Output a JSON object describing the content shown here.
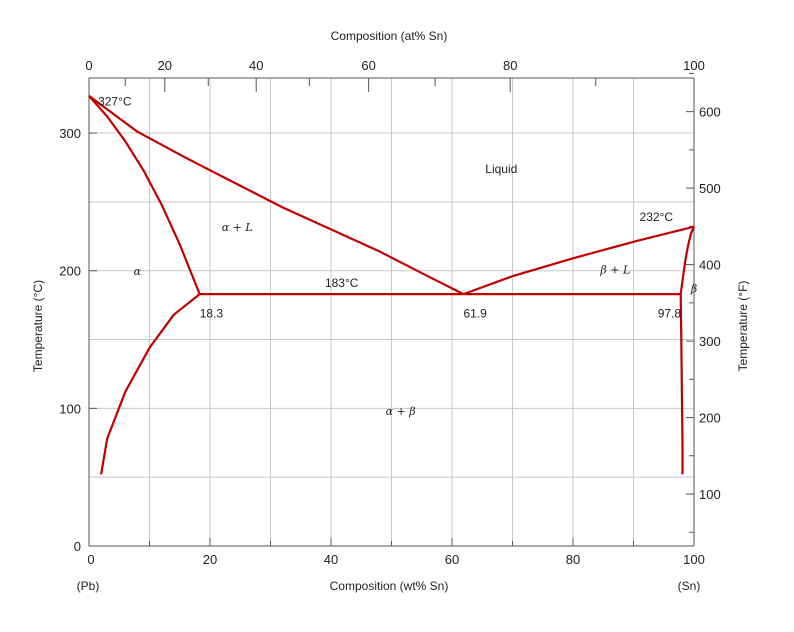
{
  "chart_data": {
    "type": "line",
    "title": "",
    "xlabel": "Composition (wt% Sn)",
    "xlabel_top": "Composition (at% Sn)",
    "ylabel": "Temperature (°C)",
    "ylabel_right": "Temperature (°F)",
    "xlim": [
      0,
      100
    ],
    "ylim": [
      0,
      340
    ],
    "x_ticks": [
      0,
      20,
      40,
      60,
      80,
      100
    ],
    "y_ticks": [
      0,
      100,
      200,
      300
    ],
    "y_ticks_right": [
      100,
      200,
      300,
      400,
      500,
      600
    ],
    "top_ticks": [
      0,
      20,
      40,
      60,
      80,
      100
    ],
    "end_labels": {
      "left": "(Pb)",
      "right": "(Sn)"
    },
    "grid": true,
    "line_color": "#c00000",
    "series": [
      {
        "x": [
          0,
          3,
          6,
          9,
          12,
          15,
          18.3
        ],
        "y": [
          327,
          312,
          294,
          273,
          248,
          219,
          183
        ]
      },
      {
        "x": [
          0,
          8,
          16,
          24,
          32,
          40,
          48,
          56,
          61.9
        ],
        "y": [
          327,
          301,
          282,
          264,
          246,
          230,
          214,
          196,
          183
        ]
      },
      {
        "x": [
          61.9,
          70,
          80,
          90,
          100
        ],
        "y": [
          183,
          196,
          209,
          221,
          232
        ]
      },
      {
        "x": [
          18.3,
          97.8
        ],
        "y": [
          183,
          183
        ]
      },
      {
        "x": [
          18.3,
          14,
          10,
          6,
          3,
          2
        ],
        "y": [
          183,
          168,
          144,
          112,
          78,
          52
        ]
      },
      {
        "x": [
          97.8,
          98.2,
          98.6,
          99,
          99.5,
          100
        ],
        "y": [
          183,
          196,
          208,
          218,
          227,
          232
        ]
      },
      {
        "x": [
          97.8,
          97.9,
          98.0,
          98.1,
          98.1
        ],
        "y": [
          183,
          150,
          110,
          75,
          52
        ]
      }
    ],
    "annotations": [
      {
        "text": "327°C",
        "x": 1.5,
        "y": 320
      },
      {
        "text": "232°C",
        "x": 91,
        "y": 236
      },
      {
        "text": "183°C",
        "x": 39,
        "y": 188
      },
      {
        "text": "18.3",
        "x": 18.3,
        "y": 166
      },
      {
        "text": "61.9",
        "x": 61.9,
        "y": 166
      },
      {
        "text": "97.8",
        "x": 94,
        "y": 166
      },
      {
        "text": "Liquid",
        "x": 65.5,
        "y": 271
      }
    ],
    "regions": [
      {
        "text": "α",
        "x": 8,
        "y": 197
      },
      {
        "text": "α + L",
        "x": 24.5,
        "y": 229
      },
      {
        "text": "β + L",
        "x": 87,
        "y": 198
      },
      {
        "text": "α + β",
        "x": 51.5,
        "y": 95
      },
      {
        "text": "β",
        "x": 100,
        "y": 184
      }
    ]
  }
}
